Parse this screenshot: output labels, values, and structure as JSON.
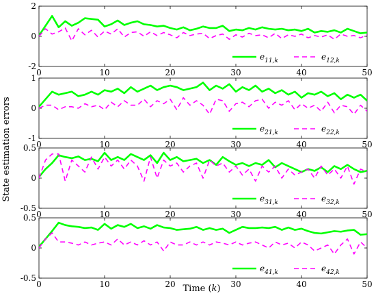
{
  "chart_data": [
    {
      "type": "line",
      "ylim": [
        -2,
        2
      ],
      "yticks": [
        -2,
        0,
        2
      ],
      "xlim": [
        0,
        50
      ],
      "xticks": [
        0,
        10,
        20,
        30,
        40,
        50
      ],
      "legend_position": "bottom-right",
      "series": [
        {
          "name": "e11,k",
          "color": "#00ff00",
          "style": "solid",
          "values": [
            0.05,
            0.7,
            1.35,
            0.6,
            1.0,
            0.7,
            0.9,
            1.2,
            1.15,
            1.1,
            0.65,
            0.8,
            1.05,
            0.75,
            0.9,
            1.0,
            0.8,
            0.75,
            0.65,
            0.7,
            0.55,
            0.45,
            0.6,
            0.4,
            0.5,
            0.65,
            0.55,
            0.55,
            0.7,
            0.35,
            0.45,
            0.4,
            0.55,
            0.45,
            0.6,
            0.5,
            0.45,
            0.5,
            0.4,
            0.45,
            0.35,
            0.5,
            0.25,
            0.35,
            0.3,
            0.4,
            0.25,
            0.5,
            0.35,
            0.2,
            0.25
          ]
        },
        {
          "name": "e12,k",
          "color": "#ff00ff",
          "style": "dashed",
          "values": [
            0.0,
            0.5,
            0.15,
            0.3,
            0.55,
            -0.3,
            0.5,
            0.1,
            0.4,
            -0.05,
            0.35,
            0.15,
            0.5,
            -0.05,
            0.25,
            0.3,
            0.0,
            0.3,
            0.05,
            0.25,
            0.1,
            -0.1,
            0.25,
            0.05,
            0.15,
            0.2,
            -0.15,
            0.05,
            0.15,
            -0.2,
            0.1,
            -0.05,
            0.2,
            0.05,
            0.1,
            -0.1,
            0.2,
            -0.15,
            0.1,
            0.0,
            0.15,
            -0.1,
            0.05,
            -0.05,
            0.1,
            -0.2,
            0.15,
            0.0,
            0.05,
            -0.1,
            0.1
          ]
        }
      ]
    },
    {
      "type": "line",
      "ylim": [
        -1,
        1
      ],
      "yticks": [
        -1,
        0,
        1
      ],
      "xlim": [
        0,
        50
      ],
      "xticks": [
        0,
        10,
        20,
        30,
        40,
        50
      ],
      "legend_position": "bottom-right",
      "series": [
        {
          "name": "e21,k",
          "color": "#00ff00",
          "style": "solid",
          "values": [
            0.05,
            0.3,
            0.55,
            0.45,
            0.5,
            0.55,
            0.4,
            0.45,
            0.55,
            0.45,
            0.6,
            0.55,
            0.65,
            0.5,
            0.7,
            0.55,
            0.65,
            0.75,
            0.6,
            0.7,
            0.75,
            0.7,
            0.6,
            0.65,
            0.7,
            0.85,
            0.6,
            0.75,
            0.65,
            0.8,
            0.55,
            0.7,
            0.6,
            0.75,
            0.55,
            0.65,
            0.5,
            0.6,
            0.45,
            0.55,
            0.35,
            0.5,
            0.45,
            0.55,
            0.4,
            0.5,
            0.3,
            0.45,
            0.35,
            0.45,
            0.25
          ]
        },
        {
          "name": "e22,k",
          "color": "#ff00ff",
          "style": "dashed",
          "values": [
            0.0,
            0.1,
            0.1,
            -0.05,
            0.05,
            0.05,
            0.0,
            0.15,
            0.05,
            0.1,
            -0.05,
            0.2,
            0.05,
            0.25,
            0.1,
            0.1,
            0.3,
            0.05,
            0.25,
            0.15,
            0.3,
            -0.05,
            0.35,
            0.1,
            0.25,
            0.1,
            -0.2,
            0.3,
            0.25,
            -0.1,
            0.15,
            0.2,
            0.05,
            0.25,
            0.3,
            0.0,
            0.2,
            0.1,
            0.25,
            -0.05,
            0.15,
            0.0,
            0.1,
            -0.1,
            0.2,
            -0.15,
            0.1,
            0.05,
            -0.2,
            0.1,
            -0.1
          ]
        }
      ]
    },
    {
      "type": "line",
      "ylim": [
        -0.5,
        0.5
      ],
      "yticks": [
        -0.5,
        0,
        0.5
      ],
      "xlim": [
        0,
        50
      ],
      "xticks": [
        0,
        10,
        20,
        30,
        40,
        50
      ],
      "legend_position": "bottom-right",
      "series": [
        {
          "name": "e31,k",
          "color": "#00ff00",
          "style": "solid",
          "values": [
            0.02,
            0.15,
            0.25,
            0.38,
            0.35,
            0.33,
            0.36,
            0.3,
            0.32,
            0.28,
            0.42,
            0.3,
            0.35,
            0.3,
            0.4,
            0.35,
            0.3,
            0.38,
            0.25,
            0.42,
            0.3,
            0.35,
            0.28,
            0.3,
            0.32,
            0.25,
            0.3,
            0.22,
            0.35,
            0.28,
            0.22,
            0.25,
            0.2,
            0.25,
            0.22,
            0.3,
            0.18,
            0.25,
            0.2,
            0.15,
            0.1,
            0.15,
            0.12,
            0.18,
            0.1,
            0.2,
            0.15,
            0.22,
            0.15,
            0.1,
            0.12
          ]
        },
        {
          "name": "e32,k",
          "color": "#ff00ff",
          "style": "dashed",
          "values": [
            0.0,
            0.3,
            0.4,
            0.4,
            -0.05,
            0.3,
            0.2,
            0.1,
            0.35,
            0.15,
            0.35,
            0.2,
            0.3,
            0.15,
            0.3,
            0.2,
            -0.05,
            0.35,
            0.0,
            0.3,
            0.2,
            0.25,
            0.1,
            0.2,
            0.25,
            0.0,
            0.3,
            0.2,
            0.25,
            0.1,
            0.2,
            0.05,
            0.15,
            -0.05,
            0.2,
            0.1,
            0.2,
            0.0,
            0.15,
            0.05,
            0.1,
            0.15,
            0.0,
            0.2,
            0.05,
            0.15,
            0.0,
            0.2,
            -0.1,
            0.15,
            0.1
          ]
        }
      ]
    },
    {
      "type": "line",
      "ylim": [
        -0.5,
        0.5
      ],
      "yticks": [
        -0.5,
        0,
        0.5
      ],
      "xlim": [
        0,
        50
      ],
      "xticks": [
        0,
        10,
        20,
        30,
        40,
        50
      ],
      "legend_position": "bottom-right",
      "series": [
        {
          "name": "e41,k",
          "color": "#00ff00",
          "style": "solid",
          "values": [
            0.02,
            0.15,
            0.28,
            0.42,
            0.38,
            0.36,
            0.35,
            0.33,
            0.34,
            0.3,
            0.4,
            0.32,
            0.38,
            0.35,
            0.4,
            0.33,
            0.36,
            0.32,
            0.38,
            0.34,
            0.33,
            0.3,
            0.31,
            0.32,
            0.35,
            0.3,
            0.33,
            0.3,
            0.32,
            0.25,
            0.3,
            0.35,
            0.33,
            0.33,
            0.34,
            0.33,
            0.35,
            0.3,
            0.34,
            0.3,
            0.32,
            0.28,
            0.25,
            0.24,
            0.26,
            0.28,
            0.27,
            0.29,
            0.3,
            0.22,
            0.23
          ]
        },
        {
          "name": "e42,k",
          "color": "#ff00ff",
          "style": "dashed",
          "values": [
            0.0,
            0.15,
            0.25,
            0.1,
            0.1,
            0.08,
            0.05,
            0.1,
            0.05,
            0.08,
            0.1,
            0.05,
            0.15,
            0.05,
            0.1,
            0.05,
            0.12,
            0.05,
            0.1,
            -0.05,
            0.1,
            0.05,
            0.05,
            0.1,
            0.05,
            0.1,
            0.05,
            0.1,
            0.08,
            0.05,
            0.1,
            0.05,
            0.08,
            0.1,
            0.05,
            0.0,
            0.1,
            0.05,
            0.08,
            0.0,
            0.1,
            0.05,
            -0.05,
            0.0,
            0.05,
            -0.1,
            0.05,
            0.15,
            -0.1,
            0.1,
            0.0
          ]
        }
      ]
    }
  ],
  "xlabel": "Time (k)",
  "ylabel": "State estimation errors"
}
